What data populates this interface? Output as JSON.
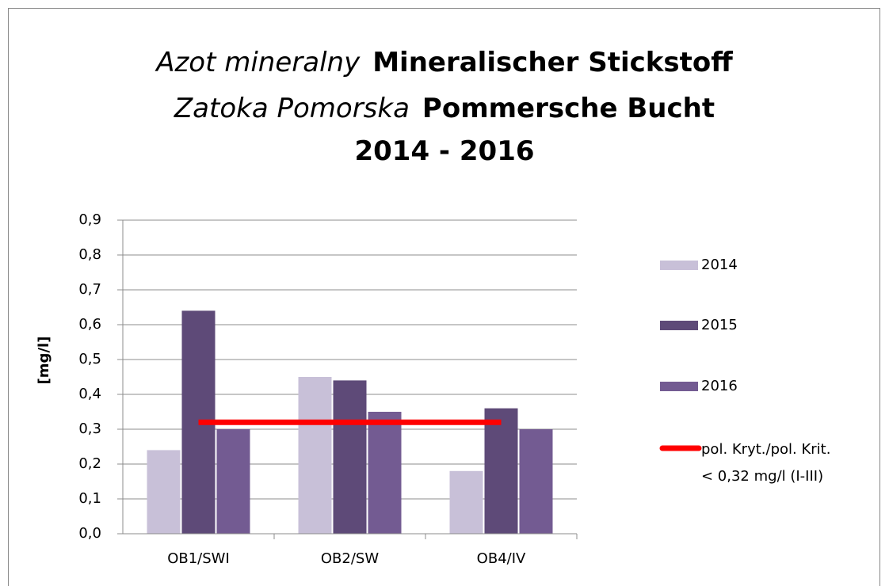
{
  "chart_data": {
    "type": "bar",
    "title": [
      [
        "Azot mineralny",
        "Mineralischer Stickstoff"
      ],
      [
        "Zatoka Pomorska",
        "Pommersche Bucht"
      ],
      [
        "2014 - 2016"
      ]
    ],
    "y_label": "[mg/l]",
    "categories": [
      "OB1/SWI",
      "OB2/SW",
      "OB4/IV"
    ],
    "series": [
      {
        "name": "2014",
        "color": "#c8c0d8",
        "values": [
          0.24,
          0.45,
          0.18
        ]
      },
      {
        "name": "2015",
        "color": "#5e4a78",
        "values": [
          0.64,
          0.44,
          0.36
        ]
      },
      {
        "name": "2016",
        "color": "#735b92",
        "values": [
          0.3,
          0.35,
          0.3
        ]
      }
    ],
    "reference_line": {
      "value": 0.32,
      "color": "#ff0000",
      "label": [
        "pol. Kryt./pol. Krit.",
        "< 0,32 mg/l (I-III)"
      ]
    },
    "ylim": [
      0,
      0.9
    ],
    "yticks": [
      {
        "value": 0,
        "label": "0,0"
      },
      {
        "value": 0.1,
        "label": "0,1"
      },
      {
        "value": 0.2,
        "label": "0,2"
      },
      {
        "value": 0.3,
        "label": "0,3"
      },
      {
        "value": 0.4,
        "label": "0,4"
      },
      {
        "value": 0.5,
        "label": "0,5"
      },
      {
        "value": 0.6,
        "label": "0,6"
      },
      {
        "value": 0.7,
        "label": "0,7"
      },
      {
        "value": 0.8,
        "label": "0,8"
      },
      {
        "value": 0.9,
        "label": "0,9"
      }
    ],
    "grid": true,
    "legend": "right"
  }
}
